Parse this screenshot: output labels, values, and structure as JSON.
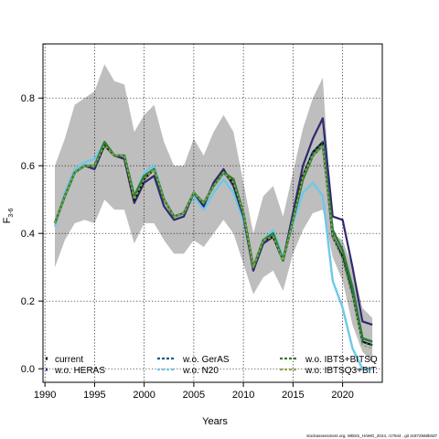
{
  "chart_data": {
    "type": "line",
    "xlabel": "Years",
    "ylabel": "F",
    "ylabel_sub": "3-6",
    "xlim": [
      1989.8,
      2024.0
    ],
    "ylim": [
      -0.04,
      0.96
    ],
    "grid": true,
    "x_ticks": [
      1990,
      1995,
      2000,
      2005,
      2010,
      2015,
      2020
    ],
    "y_ticks": [
      0.0,
      0.2,
      0.4,
      0.6,
      0.8
    ],
    "x_tick_labels": [
      "1990",
      "1995",
      "2000",
      "2005",
      "2010",
      "2015",
      "2020"
    ],
    "y_tick_labels": [
      "0.0",
      "0.2",
      "0.4",
      "0.6",
      "0.8"
    ],
    "x": [
      1991,
      1992,
      1993,
      1994,
      1995,
      1996,
      1997,
      1998,
      1999,
      2000,
      2001,
      2002,
      2003,
      2004,
      2005,
      2006,
      2007,
      2008,
      2009,
      2010,
      2011,
      2012,
      2013,
      2014,
      2015,
      2016,
      2017,
      2018,
      2019,
      2020,
      2021,
      2022,
      2023
    ],
    "band": {
      "upper": [
        0.6,
        0.68,
        0.78,
        0.8,
        0.82,
        0.9,
        0.85,
        0.84,
        0.7,
        0.75,
        0.78,
        0.67,
        0.6,
        0.6,
        0.68,
        0.63,
        0.7,
        0.75,
        0.7,
        0.55,
        0.4,
        0.51,
        0.54,
        0.45,
        0.58,
        0.71,
        0.8,
        0.86,
        0.4,
        0.38,
        0.3,
        0.18,
        0.15
      ],
      "lower": [
        0.3,
        0.38,
        0.43,
        0.44,
        0.43,
        0.5,
        0.47,
        0.47,
        0.37,
        0.43,
        0.43,
        0.38,
        0.34,
        0.34,
        0.38,
        0.36,
        0.4,
        0.44,
        0.4,
        0.31,
        0.22,
        0.27,
        0.29,
        0.23,
        0.34,
        0.41,
        0.46,
        0.47,
        0.33,
        0.26,
        0.13,
        0.05,
        0.02
      ]
    },
    "series": [
      {
        "name": "current",
        "color": "#000000",
        "dash": "solid",
        "values": [
          0.43,
          0.51,
          0.58,
          0.6,
          0.6,
          0.66,
          0.63,
          0.63,
          0.5,
          0.56,
          0.59,
          0.5,
          0.45,
          0.46,
          0.52,
          0.49,
          0.54,
          0.58,
          0.55,
          0.46,
          0.3,
          0.38,
          0.39,
          0.32,
          0.44,
          0.57,
          0.64,
          0.67,
          0.39,
          0.33,
          0.22,
          0.08,
          0.07
        ]
      },
      {
        "name": "w.o. HERAS",
        "color": "#2e2a6e",
        "dash": "solid",
        "values": [
          0.43,
          0.51,
          0.58,
          0.6,
          0.59,
          0.66,
          0.63,
          0.62,
          0.49,
          0.55,
          0.57,
          0.48,
          0.44,
          0.45,
          0.52,
          0.48,
          0.55,
          0.59,
          0.54,
          0.45,
          0.29,
          0.37,
          0.39,
          0.32,
          0.46,
          0.6,
          0.68,
          0.74,
          0.45,
          0.44,
          0.3,
          0.14,
          0.13
        ]
      },
      {
        "name": "w.o. GerAS",
        "color": "#1f5d8c",
        "dash": "dashed",
        "values": [
          0.43,
          0.51,
          0.58,
          0.6,
          0.6,
          0.66,
          0.63,
          0.63,
          0.5,
          0.56,
          0.59,
          0.5,
          0.45,
          0.46,
          0.52,
          0.49,
          0.54,
          0.58,
          0.55,
          0.46,
          0.3,
          0.38,
          0.39,
          0.32,
          0.44,
          0.57,
          0.64,
          0.67,
          0.39,
          0.33,
          0.22,
          0.08,
          0.07
        ]
      },
      {
        "name": "w.o. N20",
        "color": "#6ec8e8",
        "dash": "dashed",
        "values": [
          0.42,
          0.52,
          0.59,
          0.61,
          0.62,
          0.67,
          0.63,
          0.63,
          0.51,
          0.58,
          0.6,
          0.5,
          0.45,
          0.46,
          0.51,
          0.47,
          0.52,
          0.56,
          0.52,
          0.44,
          0.3,
          0.38,
          0.41,
          0.33,
          0.43,
          0.52,
          0.55,
          0.51,
          0.26,
          0.18,
          0.06,
          0.0,
          0.0
        ]
      },
      {
        "name": "w.o. IBTS+BITSQ",
        "color": "#2e7d32",
        "dash": "dashed",
        "values": [
          0.43,
          0.51,
          0.58,
          0.6,
          0.6,
          0.67,
          0.63,
          0.63,
          0.51,
          0.57,
          0.59,
          0.5,
          0.45,
          0.46,
          0.52,
          0.49,
          0.54,
          0.58,
          0.56,
          0.46,
          0.3,
          0.38,
          0.4,
          0.32,
          0.44,
          0.56,
          0.63,
          0.66,
          0.41,
          0.35,
          0.24,
          0.09,
          0.08
        ]
      },
      {
        "name": "w.o. IBTSQ3+BIT:",
        "color": "#8fa84a",
        "dash": "dashed",
        "values": [
          0.43,
          0.51,
          0.58,
          0.6,
          0.6,
          0.66,
          0.63,
          0.63,
          0.5,
          0.56,
          0.59,
          0.5,
          0.45,
          0.46,
          0.52,
          0.49,
          0.54,
          0.58,
          0.55,
          0.46,
          0.3,
          0.38,
          0.39,
          0.32,
          0.44,
          0.57,
          0.63,
          0.66,
          0.39,
          0.32,
          0.21,
          0.07,
          0.06
        ]
      }
    ],
    "band_color": "#bebebe",
    "footer": "stockassessment.org, WBSS_HAWG_2024, r17944 , git 3c872568b0d7"
  }
}
